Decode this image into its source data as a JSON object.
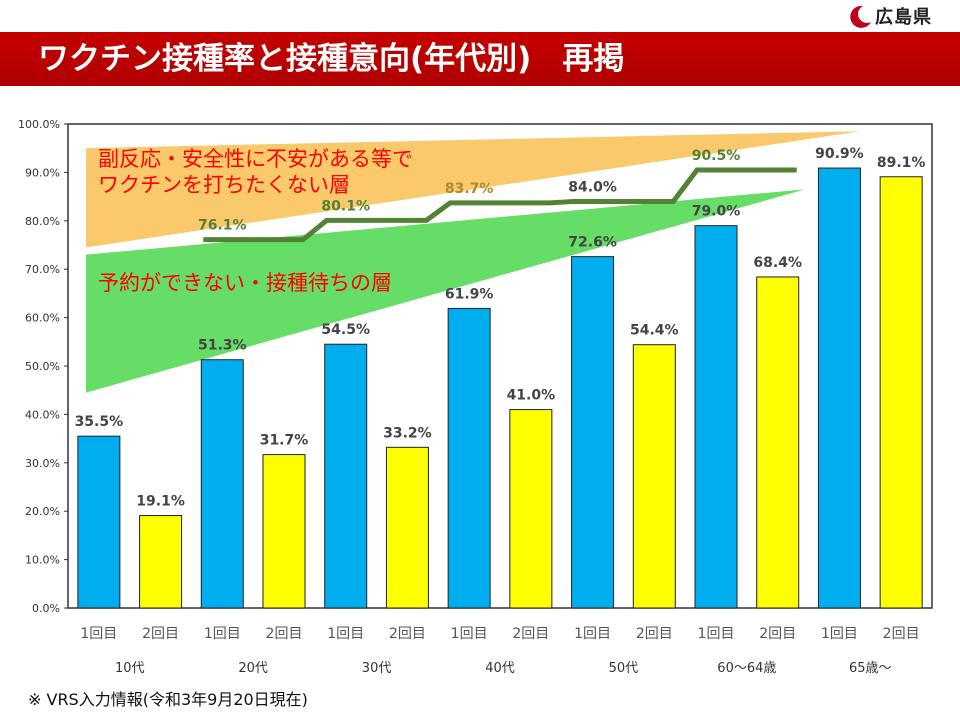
{
  "header": {
    "logo_text": "広島県",
    "title": "ワクチン接種率と接種意向(年代別)　再掲"
  },
  "chart_data": {
    "type": "bar",
    "ylim": [
      0,
      100
    ],
    "ytick_labels": [
      "0.0%",
      "10.0%",
      "20.0%",
      "30.0%",
      "40.0%",
      "50.0%",
      "60.0%",
      "70.0%",
      "80.0%",
      "90.0%",
      "100.0%"
    ],
    "groups": [
      "10代",
      "20代",
      "30代",
      "40代",
      "50代",
      "60～64歳",
      "65歳～"
    ],
    "dose_labels": [
      "1回目",
      "2回目"
    ],
    "series": [
      {
        "name": "1回目",
        "values": [
          35.5,
          51.3,
          54.5,
          61.9,
          72.6,
          79.0,
          90.9
        ],
        "value_labels": [
          "35.5%",
          "51.3%",
          "54.5%",
          "61.9%",
          "72.6%",
          "79.0%",
          "90.9%"
        ],
        "color": "#00aeef"
      },
      {
        "name": "2回目",
        "values": [
          19.1,
          31.7,
          33.2,
          41.0,
          54.4,
          68.4,
          89.1
        ],
        "value_labels": [
          "19.1%",
          "31.7%",
          "33.2%",
          "41.0%",
          "54.4%",
          "68.4%",
          "89.1%"
        ],
        "color": "#ffff00"
      }
    ],
    "intent_line": {
      "groups": [
        "20代",
        "30代",
        "40代",
        "50代",
        "60～64歳"
      ],
      "values": [
        76.1,
        80.1,
        83.7,
        84.0,
        90.5
      ],
      "value_labels": [
        "76.1%",
        "80.1%",
        "83.7%",
        "84.0%",
        "90.5%"
      ],
      "color": "#548235"
    },
    "annotations": {
      "upper_band": {
        "lines": [
          "副反応・安全性に不安がある等で",
          "ワクチンを打ちたくない層"
        ],
        "color": "#f9c96b",
        "text_color": "#ff0000"
      },
      "lower_band": {
        "lines": [
          "予約ができない・接種待ちの層"
        ],
        "color": "#66dd66",
        "text_color": "#ff0000"
      }
    },
    "grid": false,
    "legend": "none"
  },
  "footnote": "※ VRS入力情報(令和3年9月20日現在)"
}
